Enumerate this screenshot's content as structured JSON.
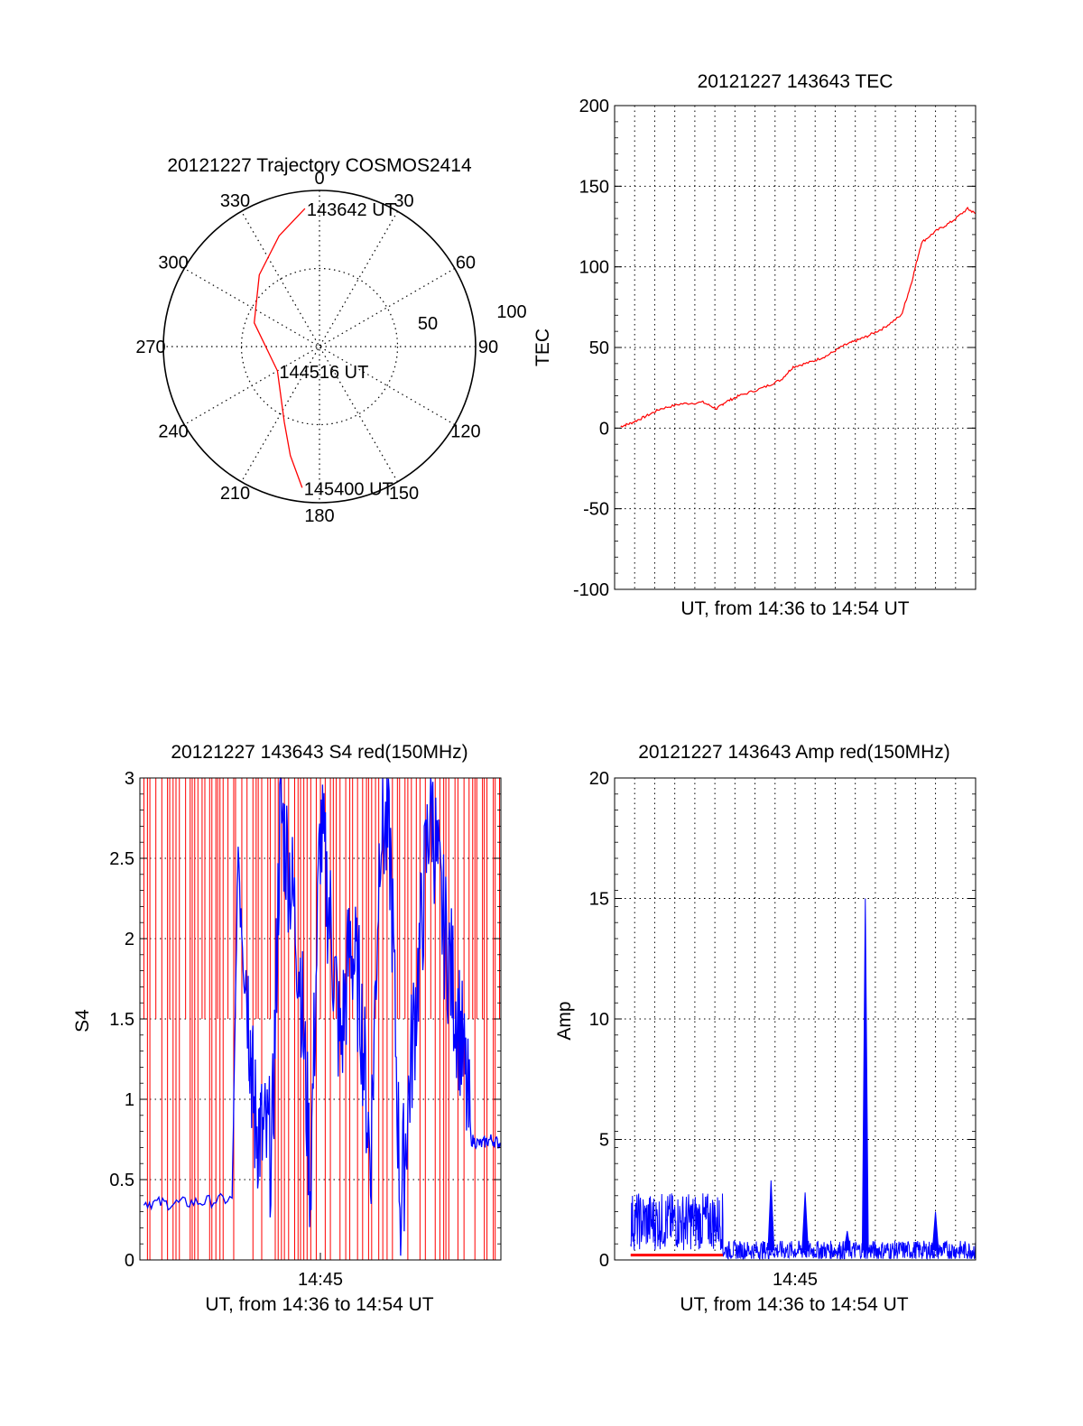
{
  "chart_data": [
    {
      "type": "polar",
      "title": "20121227 Trajectory COSMOS2414",
      "angle_ticks": [
        "0",
        "30",
        "60",
        "90",
        "120",
        "150",
        "180",
        "210",
        "240",
        "270",
        "300",
        "330"
      ],
      "radius_labels": [
        "50",
        "100"
      ],
      "trajectory_color": "#ff0000",
      "trajectory": [
        {
          "az": 354,
          "el": 10,
          "label": "143642 UT"
        },
        {
          "az": 340,
          "el": 22
        },
        {
          "az": 320,
          "el": 36
        },
        {
          "az": 290,
          "el": 50
        },
        {
          "az": 240,
          "el": 62,
          "label": "144516 UT"
        },
        {
          "az": 205,
          "el": 42
        },
        {
          "az": 195,
          "el": 25
        },
        {
          "az": 187,
          "el": 8,
          "label": "145400 UT"
        }
      ]
    },
    {
      "type": "line",
      "title": "20121227 143643 TEC",
      "xlabel": "UT, from 14:36 to 14:54 UT",
      "ylabel": "TEC",
      "xlim": [
        0,
        18
      ],
      "ylim": [
        -100,
        200
      ],
      "yticks": [
        "200",
        "150",
        "100",
        "50",
        "0",
        "-50",
        "-100"
      ],
      "series": [
        {
          "color": "#ff0000",
          "x": [
            0.3,
            0.8,
            1.5,
            2.3,
            3.3,
            4.4,
            5.1,
            5.5,
            6.2,
            7.4,
            8.3,
            8.9,
            9.8,
            10.6,
            11.4,
            12.0,
            12.6,
            13.4,
            14.3,
            14.8,
            15.3,
            16.0,
            16.8,
            17.6,
            18.0
          ],
          "y": [
            1,
            3,
            7,
            12,
            15,
            16,
            12,
            16,
            20,
            25,
            30,
            38,
            41,
            45,
            51,
            54,
            57,
            62,
            70,
            90,
            115,
            122,
            128,
            136,
            133
          ]
        }
      ]
    },
    {
      "type": "line",
      "title": "20121227 143643 S4 red(150MHz)",
      "xlabel": "UT, from 14:36 to 14:54 UT",
      "ylabel": "S4",
      "xlim": [
        0,
        18
      ],
      "ylim": [
        0,
        3
      ],
      "yticks": [
        "3",
        "2.5",
        "2",
        "1.5",
        "1",
        "0.5",
        "0"
      ],
      "xticks": [
        {
          "value": 9,
          "label": "14:45"
        }
      ],
      "series": [
        {
          "color": "#ff0000",
          "style": "dense-spikes",
          "x_range": [
            0.2,
            18
          ],
          "levels": [
            1.5,
            3
          ]
        },
        {
          "color": "#0000ff",
          "x": [
            0.2,
            1.5,
            3.0,
            4.6,
            4.9,
            5.4,
            5.7,
            6.1,
            6.6,
            7.0,
            7.5,
            8.0,
            8.5,
            9.0,
            9.5,
            10.0,
            10.5,
            11.0,
            11.5,
            12.0,
            12.5,
            13.0,
            13.5,
            14.0,
            14.5,
            15.0,
            15.5,
            16.0,
            16.5,
            17.0,
            17.5,
            18.0
          ],
          "y": [
            0.36,
            0.35,
            0.36,
            0.38,
            2.6,
            1.6,
            0.9,
            0.75,
            0.7,
            2.8,
            2.4,
            1.8,
            0.5,
            2.7,
            2.1,
            1.3,
            2.0,
            1.6,
            0.6,
            2.8,
            2.5,
            0.3,
            1.2,
            2.0,
            2.9,
            2.2,
            1.8,
            1.4,
            0.75,
            0.72,
            0.75,
            0.72
          ]
        }
      ]
    },
    {
      "type": "line",
      "title": "20121227 143643 Amp red(150MHz)",
      "xlabel": "UT, from 14:36 to 14:54 UT",
      "ylabel": "Amp",
      "xlim": [
        0,
        18
      ],
      "ylim": [
        0,
        20
      ],
      "yticks": [
        "20",
        "15",
        "10",
        "5",
        "0"
      ],
      "xticks": [
        {
          "value": 9,
          "label": "14:45"
        }
      ],
      "series": [
        {
          "color": "#0000ff",
          "style": "noisy",
          "segments": [
            {
              "x": [
                0.8,
                5.4
              ],
              "base": 1.6,
              "amp": 1.2
            },
            {
              "x": [
                5.4,
                18
              ],
              "base": 0.4,
              "amp": 0.4
            }
          ],
          "spikes": [
            {
              "x": 7.8,
              "y": 3.3
            },
            {
              "x": 9.5,
              "y": 2.8
            },
            {
              "x": 11.6,
              "y": 1.2
            },
            {
              "x": 12.5,
              "y": 15.0
            },
            {
              "x": 16.0,
              "y": 2.0
            }
          ]
        },
        {
          "color": "#ff0000",
          "style": "baseline",
          "x": [
            0.8,
            5.4
          ],
          "y": 0.2
        }
      ]
    }
  ]
}
